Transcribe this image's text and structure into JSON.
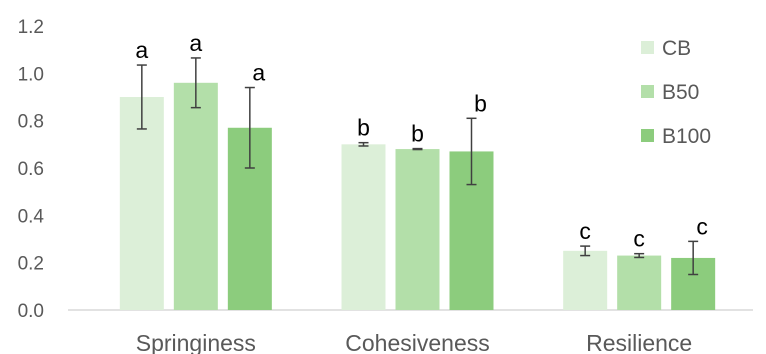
{
  "chart_data": {
    "type": "bar",
    "categories": [
      "Springiness",
      "Cohesiveness",
      "Resilience"
    ],
    "series": [
      {
        "name": "CB",
        "color": "#dcefd8",
        "values": [
          0.9,
          0.7,
          0.25
        ],
        "errors": [
          0.135,
          0.007,
          0.02
        ],
        "letters": [
          "a",
          "b",
          "c"
        ]
      },
      {
        "name": "B50",
        "color": "#b3dfa9",
        "values": [
          0.96,
          0.68,
          0.23
        ],
        "errors": [
          0.105,
          0.002,
          0.008
        ],
        "letters": [
          "a",
          "b",
          "c"
        ]
      },
      {
        "name": "B100",
        "color": "#8ccc7d",
        "values": [
          0.77,
          0.67,
          0.22
        ],
        "errors": [
          0.17,
          0.14,
          0.07
        ],
        "letters": [
          "a",
          "b",
          "c"
        ]
      }
    ],
    "ylim": [
      0,
      1.2
    ],
    "yticks": [
      "0.0",
      "0.2",
      "0.4",
      "0.6",
      "0.8",
      "1.0",
      "1.2"
    ],
    "legend_position": "top-right",
    "grid": false
  }
}
